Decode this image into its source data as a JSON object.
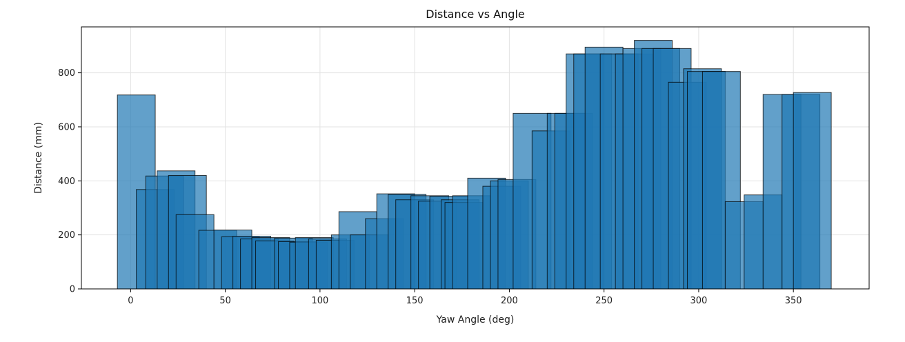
{
  "chart_data": {
    "type": "bar",
    "title": "Distance vs Angle",
    "xlabel": "Yaw Angle (deg)",
    "ylabel": "Distance (mm)",
    "xlim": [
      -26,
      390
    ],
    "ylim": [
      0,
      970
    ],
    "xticks": [
      0,
      50,
      100,
      150,
      200,
      250,
      300,
      350
    ],
    "yticks": [
      0,
      200,
      400,
      600,
      800
    ],
    "grid": true,
    "bar_width": 20,
    "bar_color": "#1f77b4",
    "bar_edge_color": "#000000",
    "bar_alpha": 0.7,
    "x": [
      3,
      13,
      18,
      24,
      30,
      34,
      46,
      54,
      58,
      64,
      68,
      74,
      76,
      86,
      88,
      94,
      97,
      104,
      108,
      116,
      120,
      126,
      134,
      140,
      146,
      150,
      158,
      162,
      168,
      174,
      176,
      180,
      188,
      196,
      200,
      204,
      212,
      222,
      230,
      234,
      240,
      244,
      250,
      258,
      266,
      270,
      276,
      280,
      286,
      294,
      302,
      304,
      312,
      324,
      334,
      344,
      354,
      360
    ],
    "values": [
      718,
      368,
      418,
      437,
      420,
      275,
      217,
      218,
      193,
      195,
      185,
      190,
      178,
      188,
      175,
      173,
      190,
      185,
      180,
      200,
      286,
      200,
      260,
      352,
      350,
      330,
      345,
      325,
      343,
      330,
      320,
      345,
      410,
      380,
      400,
      405,
      650,
      585,
      650,
      650,
      870,
      870,
      895,
      870,
      870,
      890,
      920,
      890,
      890,
      765,
      815,
      805,
      805,
      323,
      348,
      720,
      720,
      727
    ]
  }
}
